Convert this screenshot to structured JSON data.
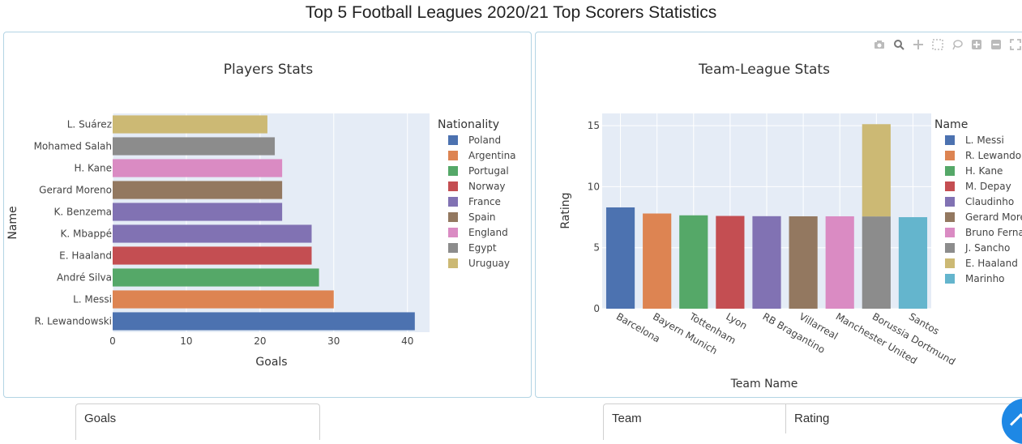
{
  "page": {
    "title": "Top 5 Football Leagues 2020/21 Top Scorers Statistics"
  },
  "modebar": {
    "icons": [
      "camera-icon",
      "zoom-icon",
      "pan-icon",
      "box-select-icon",
      "lasso-icon",
      "zoom-in-icon",
      "zoom-out-icon",
      "autoscale-icon"
    ]
  },
  "chart_data": [
    {
      "type": "bar",
      "orientation": "horizontal",
      "title": "Players Stats",
      "xlabel": "Goals",
      "ylabel": "Name",
      "xlim": [
        0,
        43
      ],
      "xticks": [
        "0",
        "10",
        "20",
        "30",
        "40"
      ],
      "grid": true,
      "legend": {
        "title": "Nationality",
        "position": "right"
      },
      "bars": [
        {
          "name": "R. Lewandowski",
          "value": 41,
          "nationality": "Poland"
        },
        {
          "name": "L. Messi",
          "value": 30,
          "nationality": "Argentina"
        },
        {
          "name": "André Silva",
          "value": 28,
          "nationality": "Portugal"
        },
        {
          "name": "E. Haaland",
          "value": 27,
          "nationality": "Norway"
        },
        {
          "name": "K. Mbappé",
          "value": 27,
          "nationality": "France"
        },
        {
          "name": "K. Benzema",
          "value": 23,
          "nationality": "France"
        },
        {
          "name": "Gerard Moreno",
          "value": 23,
          "nationality": "Spain"
        },
        {
          "name": "H. Kane",
          "value": 23,
          "nationality": "England"
        },
        {
          "name": "Mohamed Salah",
          "value": 22,
          "nationality": "Egypt"
        },
        {
          "name": "L. Suárez",
          "value": 21,
          "nationality": "Uruguay"
        }
      ],
      "legend_entries": [
        {
          "label": "Poland",
          "color": "#4c72b0"
        },
        {
          "label": "Argentina",
          "color": "#dd8452"
        },
        {
          "label": "Portugal",
          "color": "#55a868"
        },
        {
          "label": "Norway",
          "color": "#c44e52"
        },
        {
          "label": "France",
          "color": "#8172b3"
        },
        {
          "label": "Spain",
          "color": "#937860"
        },
        {
          "label": "England",
          "color": "#da8bc3"
        },
        {
          "label": "Egypt",
          "color": "#8c8c8c"
        },
        {
          "label": "Uruguay",
          "color": "#ccb974"
        }
      ]
    },
    {
      "type": "bar",
      "stacked": true,
      "title": "Team-League Stats",
      "xlabel": "Team Name",
      "ylabel": "Rating",
      "ylim": [
        0,
        16
      ],
      "yticks": [
        "0",
        "5",
        "10",
        "15"
      ],
      "grid": true,
      "legend": {
        "title": "Name",
        "position": "right"
      },
      "categories": [
        "Barcelona",
        "Bayern Munich",
        "Tottenham",
        "Lyon",
        "RB Bragantino",
        "Villarreal",
        "Manchester United",
        "Borussia Dortmund",
        "Santos"
      ],
      "series": [
        {
          "name": "L. Messi",
          "color": "#4c72b0",
          "category": "Barcelona",
          "value": 8.3
        },
        {
          "name": "R. Lewando",
          "color": "#dd8452",
          "category": "Bayern Munich",
          "value": 7.8
        },
        {
          "name": "H. Kane",
          "color": "#55a868",
          "category": "Tottenham",
          "value": 7.65
        },
        {
          "name": "M. Depay",
          "color": "#c44e52",
          "category": "Lyon",
          "value": 7.6
        },
        {
          "name": "Claudinho",
          "color": "#8172b3",
          "category": "RB Bragantino",
          "value": 7.58
        },
        {
          "name": "Gerard More",
          "color": "#937860",
          "category": "Villarreal",
          "value": 7.57
        },
        {
          "name": "Bruno Ferna",
          "color": "#da8bc3",
          "category": "Manchester United",
          "value": 7.57
        },
        {
          "name": "J. Sancho",
          "color": "#8c8c8c",
          "category": "Borussia Dortmund",
          "value": 7.56
        },
        {
          "name": "E. Haaland",
          "color": "#ccb974",
          "category": "Borussia Dortmund",
          "value": 7.56
        },
        {
          "name": "Marinho",
          "color": "#64b5cd",
          "category": "Santos",
          "value": 7.5
        }
      ]
    }
  ],
  "tables": {
    "left": {
      "headers": [
        "Goals"
      ]
    },
    "right": {
      "headers": [
        "Team",
        "Rating"
      ]
    }
  }
}
